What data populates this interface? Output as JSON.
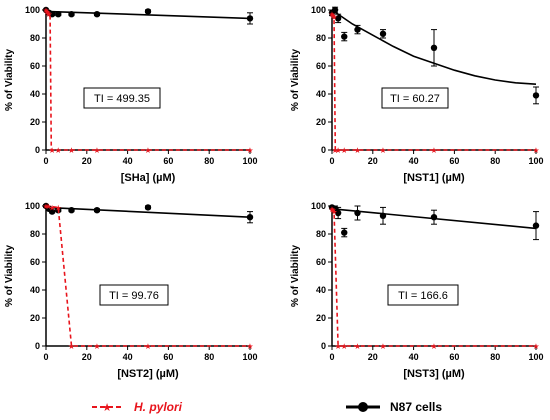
{
  "chart_data": [
    {
      "type": "scatter",
      "xlabel": "[SHa] (µM)",
      "ylabel": "% of Viability",
      "xlim": [
        0,
        100
      ],
      "ylim": [
        0,
        100
      ],
      "xticks": [
        0,
        20,
        40,
        60,
        80,
        100
      ],
      "yticks": [
        0,
        20,
        40,
        60,
        80,
        100
      ],
      "annotation": "TI = 499.35",
      "series": [
        {
          "key": "N87 cells",
          "points": [
            [
              0,
              100
            ],
            [
              1.5,
              98
            ],
            [
              3,
              97
            ],
            [
              6,
              97
            ],
            [
              12.5,
              97
            ],
            [
              25,
              97
            ],
            [
              50,
              99
            ],
            [
              100,
              94
            ]
          ],
          "errors": [
            0,
            1,
            1,
            1,
            1,
            1,
            1,
            4
          ],
          "fit": [
            [
              0,
              99
            ],
            [
              100,
              94
            ]
          ]
        },
        {
          "key": "H. pylori",
          "points": [
            [
              0,
              100
            ],
            [
              0.5,
              99
            ],
            [
              1,
              98
            ],
            [
              1.5,
              97
            ],
            [
              3,
              0
            ],
            [
              6,
              0
            ],
            [
              12.5,
              0
            ],
            [
              25,
              0
            ],
            [
              50,
              0
            ],
            [
              100,
              0
            ]
          ],
          "fit": [
            [
              0,
              100
            ],
            [
              1,
              99
            ],
            [
              2,
              95
            ],
            [
              2.6,
              0
            ],
            [
              100,
              0
            ]
          ]
        }
      ]
    },
    {
      "type": "scatter",
      "xlabel": "[NST1] (µM)",
      "ylabel": "% of Viability",
      "xlim": [
        0,
        100
      ],
      "ylim": [
        0,
        100
      ],
      "xticks": [
        0,
        20,
        40,
        60,
        80,
        100
      ],
      "yticks": [
        0,
        20,
        40,
        60,
        80,
        100
      ],
      "annotation": "TI = 60.27",
      "series": [
        {
          "key": "N87 cells",
          "points": [
            [
              0,
              98
            ],
            [
              1.5,
              100
            ],
            [
              3,
              94
            ],
            [
              6,
              81
            ],
            [
              12.5,
              86
            ],
            [
              25,
              83
            ],
            [
              50,
              73
            ],
            [
              100,
              39
            ]
          ],
          "errors": [
            2,
            2,
            3,
            3,
            3,
            3,
            13,
            6
          ],
          "fit": [
            [
              0,
              100
            ],
            [
              10,
              90
            ],
            [
              20,
              82
            ],
            [
              30,
              74
            ],
            [
              40,
              67
            ],
            [
              50,
              62
            ],
            [
              60,
              57
            ],
            [
              70,
              53
            ],
            [
              80,
              50
            ],
            [
              90,
              48
            ],
            [
              100,
              47
            ]
          ]
        },
        {
          "key": "H. pylori",
          "points": [
            [
              0,
              97
            ],
            [
              0.5,
              96
            ],
            [
              1,
              95
            ],
            [
              1.5,
              0
            ],
            [
              3,
              0
            ],
            [
              6,
              0
            ],
            [
              12.5,
              0
            ],
            [
              25,
              0
            ],
            [
              50,
              0
            ],
            [
              100,
              0
            ]
          ],
          "fit": [
            [
              0,
              97
            ],
            [
              1,
              96
            ],
            [
              1.6,
              0
            ],
            [
              100,
              0
            ]
          ]
        }
      ]
    },
    {
      "type": "scatter",
      "xlabel": "[NST2] (µM)",
      "ylabel": "% of Viability",
      "xlim": [
        0,
        100
      ],
      "ylim": [
        0,
        100
      ],
      "xticks": [
        0,
        20,
        40,
        60,
        80,
        100
      ],
      "yticks": [
        0,
        20,
        40,
        60,
        80,
        100
      ],
      "annotation": "TI = 99.76",
      "series": [
        {
          "key": "N87 cells",
          "points": [
            [
              0,
              100
            ],
            [
              1.5,
              98
            ],
            [
              3,
              96
            ],
            [
              6,
              97
            ],
            [
              12.5,
              97
            ],
            [
              25,
              97
            ],
            [
              50,
              99
            ],
            [
              100,
              92
            ]
          ],
          "errors": [
            1,
            1,
            1,
            1,
            1,
            1,
            1,
            4
          ],
          "fit": [
            [
              0,
              99
            ],
            [
              100,
              92
            ]
          ]
        },
        {
          "key": "H. pylori",
          "points": [
            [
              0,
              100
            ],
            [
              1,
              100
            ],
            [
              3,
              99
            ],
            [
              6,
              99
            ],
            [
              12.5,
              0
            ],
            [
              25,
              0
            ],
            [
              50,
              0
            ],
            [
              100,
              0
            ]
          ],
          "fit": [
            [
              0,
              100
            ],
            [
              6,
              99
            ],
            [
              12.5,
              0
            ],
            [
              100,
              0
            ]
          ]
        }
      ]
    },
    {
      "type": "scatter",
      "xlabel": "[NST3] (µM)",
      "ylabel": "% of Viability",
      "xlim": [
        0,
        100
      ],
      "ylim": [
        0,
        100
      ],
      "xticks": [
        0,
        20,
        40,
        60,
        80,
        100
      ],
      "yticks": [
        0,
        20,
        40,
        60,
        80,
        100
      ],
      "annotation": "TI = 166.6",
      "series": [
        {
          "key": "N87 cells",
          "points": [
            [
              0,
              99
            ],
            [
              1.5,
              98
            ],
            [
              3,
              95
            ],
            [
              6,
              81
            ],
            [
              12.5,
              95
            ],
            [
              25,
              93
            ],
            [
              50,
              92
            ],
            [
              100,
              86
            ]
          ],
          "errors": [
            1,
            2,
            4,
            3,
            5,
            6,
            5,
            10
          ],
          "fit": [
            [
              0,
              98
            ],
            [
              100,
              84
            ]
          ]
        },
        {
          "key": "H. pylori",
          "points": [
            [
              0,
              98
            ],
            [
              0.5,
              97
            ],
            [
              1,
              96
            ],
            [
              3,
              0
            ],
            [
              6,
              0
            ],
            [
              12.5,
              0
            ],
            [
              25,
              0
            ],
            [
              50,
              0
            ],
            [
              100,
              0
            ]
          ],
          "fit": [
            [
              0,
              98
            ],
            [
              1,
              97
            ],
            [
              3,
              0
            ],
            [
              100,
              0
            ]
          ]
        }
      ]
    }
  ],
  "legend": {
    "placement": "bottom",
    "items": [
      {
        "key": "H. pylori",
        "label": "H. pylori",
        "color": "#e8141c",
        "style": "dashed-star"
      },
      {
        "key": "N87 cells",
        "label": "N87 cells",
        "color": "#000000",
        "style": "solid-circle"
      }
    ]
  },
  "colors": {
    "pylori": "#e8141c",
    "cells": "#000000"
  }
}
